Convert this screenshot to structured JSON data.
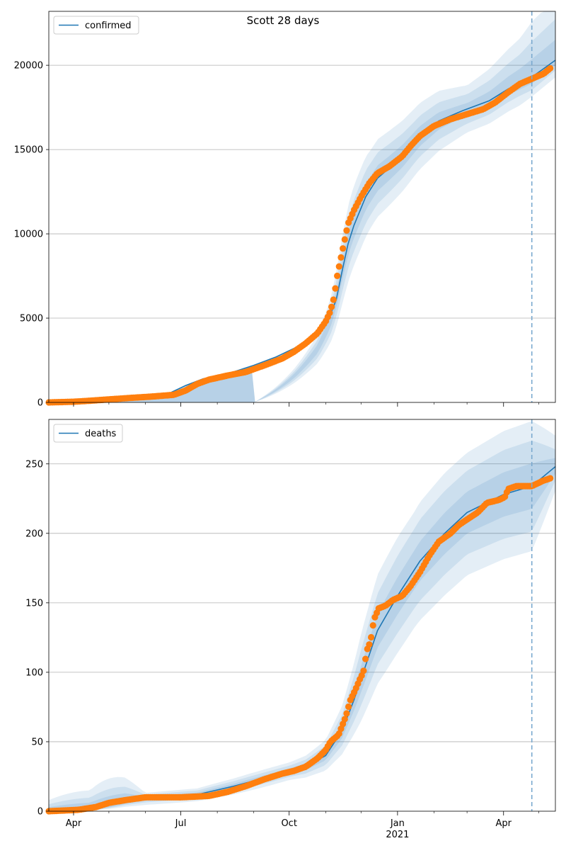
{
  "title": "Scott 28 days",
  "chart_data": [
    {
      "type": "line",
      "legend": "confirmed",
      "legend_position": "top-left",
      "grid": "y",
      "x_start": "2020-03-11",
      "x_end": "2021-05-15",
      "x_tick_labels": [
        "Apr",
        "Jul",
        "Oct",
        "Jan",
        "2021",
        "Apr"
      ],
      "y_ticks": [
        0,
        5000,
        10000,
        15000,
        20000
      ],
      "ylim": [
        0,
        23200
      ],
      "forecast_start": "2021-04-25",
      "model_line": [
        [
          "2020-03-11",
          0
        ],
        [
          "2020-04-01",
          60
        ],
        [
          "2020-05-01",
          200
        ],
        [
          "2020-06-01",
          350
        ],
        [
          "2020-06-20",
          500
        ],
        [
          "2020-07-05",
          1000
        ],
        [
          "2020-07-20",
          1400
        ],
        [
          "2020-08-10",
          1700
        ],
        [
          "2020-09-01",
          2200
        ],
        [
          "2020-09-20",
          2700
        ],
        [
          "2020-10-05",
          3200
        ],
        [
          "2020-10-25",
          4100
        ],
        [
          "2020-11-05",
          5200
        ],
        [
          "2020-11-10",
          6100
        ],
        [
          "2020-11-15",
          7800
        ],
        [
          "2020-11-20",
          9400
        ],
        [
          "2020-11-25",
          10500
        ],
        [
          "2020-12-05",
          12200
        ],
        [
          "2020-12-15",
          13300
        ],
        [
          "2020-12-25",
          13900
        ],
        [
          "2021-01-05",
          14600
        ],
        [
          "2021-01-20",
          15800
        ],
        [
          "2021-02-05",
          16700
        ],
        [
          "2021-02-25",
          17300
        ],
        [
          "2021-03-20",
          17900
        ],
        [
          "2021-04-05",
          18600
        ],
        [
          "2021-04-25",
          19300
        ],
        [
          "2021-05-15",
          20300
        ]
      ],
      "bands": [
        {
          "label": "outer",
          "lower": [
            0,
            0,
            0,
            0.73,
            0.82,
            0.87,
            0.92,
            0.93,
            0.94,
            0.95
          ],
          "upper": [
            0,
            0,
            0,
            1.27,
            1.18,
            1.13,
            1.08,
            1.14,
            1.17,
            1.18
          ]
        },
        {
          "label": "middle",
          "lower": [
            0,
            0,
            0,
            0.83,
            0.88,
            0.92,
            0.95,
            0.96,
            0.96,
            0.97
          ],
          "upper": [
            0,
            0,
            0,
            1.17,
            1.12,
            1.08,
            1.05,
            1.09,
            1.11,
            1.12
          ]
        },
        {
          "label": "inner",
          "lower": [
            0,
            0,
            0,
            0.92,
            0.94,
            0.96,
            0.98,
            0.98,
            0.98,
            0.985
          ],
          "upper": [
            0,
            0,
            0,
            1.08,
            1.06,
            1.04,
            1.02,
            1.045,
            1.055,
            1.06
          ]
        }
      ],
      "band_dates": [
        "2020-03-11",
        "2020-06-01",
        "2020-09-01",
        "2020-11-10",
        "2020-12-10",
        "2021-01-15",
        "2021-03-01",
        "2021-04-15",
        "2021-04-25",
        "2021-05-15"
      ],
      "observed": [
        [
          "2020-03-11",
          0
        ],
        [
          "2020-04-01",
          40
        ],
        [
          "2020-04-15",
          100
        ],
        [
          "2020-05-01",
          180
        ],
        [
          "2020-05-20",
          270
        ],
        [
          "2020-06-05",
          340
        ],
        [
          "2020-06-25",
          450
        ],
        [
          "2020-07-05",
          700
        ],
        [
          "2020-07-15",
          1100
        ],
        [
          "2020-07-25",
          1350
        ],
        [
          "2020-08-10",
          1600
        ],
        [
          "2020-08-25",
          1800
        ],
        [
          "2020-09-10",
          2200
        ],
        [
          "2020-09-25",
          2600
        ],
        [
          "2020-10-05",
          3000
        ],
        [
          "2020-10-15",
          3500
        ],
        [
          "2020-10-25",
          4100
        ],
        [
          "2020-11-01",
          4800
        ],
        [
          "2020-11-05",
          5400
        ],
        [
          "2020-11-08",
          6200
        ],
        [
          "2020-11-11",
          7600
        ],
        [
          "2020-11-14",
          8600
        ],
        [
          "2020-11-17",
          9600
        ],
        [
          "2020-11-20",
          10600
        ],
        [
          "2020-11-25",
          11400
        ],
        [
          "2020-12-01",
          12200
        ],
        [
          "2020-12-08",
          13000
        ],
        [
          "2020-12-15",
          13600
        ],
        [
          "2020-12-25",
          14000
        ],
        [
          "2021-01-05",
          14600
        ],
        [
          "2021-01-12",
          15200
        ],
        [
          "2021-01-20",
          15800
        ],
        [
          "2021-02-01",
          16400
        ],
        [
          "2021-02-15",
          16800
        ],
        [
          "2021-03-01",
          17100
        ],
        [
          "2021-03-15",
          17400
        ],
        [
          "2021-03-25",
          17800
        ],
        [
          "2021-04-05",
          18400
        ],
        [
          "2021-04-15",
          18900
        ],
        [
          "2021-04-25",
          19200
        ],
        [
          "2021-05-05",
          19500
        ],
        [
          "2021-05-12",
          19900
        ]
      ]
    },
    {
      "type": "line",
      "legend": "deaths",
      "legend_position": "top-left",
      "grid": "y",
      "x_start": "2020-03-11",
      "x_end": "2021-05-15",
      "x_tick_labels": [
        "Apr",
        "Jul",
        "Oct",
        "Jan",
        "2021",
        "Apr"
      ],
      "y_ticks": [
        0,
        50,
        100,
        150,
        200,
        250
      ],
      "ylim": [
        0,
        282
      ],
      "forecast_start": "2021-04-25",
      "model_line": [
        [
          "2020-03-11",
          0
        ],
        [
          "2020-04-15",
          2
        ],
        [
          "2020-05-15",
          8
        ],
        [
          "2020-06-15",
          10
        ],
        [
          "2020-07-15",
          12
        ],
        [
          "2020-08-15",
          18
        ],
        [
          "2020-09-15",
          25
        ],
        [
          "2020-10-15",
          32
        ],
        [
          "2020-11-01",
          40
        ],
        [
          "2020-11-15",
          58
        ],
        [
          "2020-11-25",
          80
        ],
        [
          "2020-12-05",
          105
        ],
        [
          "2020-12-15",
          130
        ],
        [
          "2021-01-01",
          155
        ],
        [
          "2021-01-20",
          180
        ],
        [
          "2021-02-10",
          200
        ],
        [
          "2021-03-01",
          215
        ],
        [
          "2021-04-01",
          228
        ],
        [
          "2021-04-25",
          234
        ],
        [
          "2021-05-15",
          248
        ]
      ],
      "bands": [
        {
          "label": "outer",
          "lower": [
            0,
            0.5,
            0.78,
            0.68,
            0.76,
            0.79,
            0.8,
            0.93
          ],
          "upper": [
            8,
            1.45,
            1.22,
            1.34,
            1.24,
            1.2,
            1.2,
            1.09
          ]
        },
        {
          "label": "middle",
          "lower": [
            0,
            0.7,
            0.86,
            0.8,
            0.84,
            0.86,
            0.86,
            0.96
          ],
          "upper": [
            5,
            1.3,
            1.14,
            1.22,
            1.17,
            1.14,
            1.14,
            1.05
          ]
        },
        {
          "label": "inner",
          "lower": [
            0,
            0.85,
            0.93,
            0.9,
            0.92,
            0.93,
            0.93,
            0.98
          ],
          "upper": [
            3,
            1.15,
            1.07,
            1.1,
            1.08,
            1.07,
            1.07,
            1.025
          ]
        }
      ],
      "band_dates": [
        "2020-03-11",
        "2020-06-01",
        "2020-10-01",
        "2020-12-01",
        "2021-01-15",
        "2021-03-01",
        "2021-04-25",
        "2021-05-15"
      ],
      "observed": [
        [
          "2020-03-11",
          0
        ],
        [
          "2020-04-05",
          1
        ],
        [
          "2020-04-20",
          3
        ],
        [
          "2020-05-01",
          6
        ],
        [
          "2020-05-15",
          8
        ],
        [
          "2020-06-01",
          10
        ],
        [
          "2020-07-01",
          10
        ],
        [
          "2020-07-25",
          11
        ],
        [
          "2020-08-10",
          14
        ],
        [
          "2020-08-25",
          18
        ],
        [
          "2020-09-10",
          23
        ],
        [
          "2020-09-25",
          27
        ],
        [
          "2020-10-05",
          29
        ],
        [
          "2020-10-15",
          32
        ],
        [
          "2020-10-25",
          38
        ],
        [
          "2020-11-01",
          44
        ],
        [
          "2020-11-05",
          50
        ],
        [
          "2020-11-12",
          55
        ],
        [
          "2020-11-18",
          68
        ],
        [
          "2020-11-22",
          80
        ],
        [
          "2020-11-26",
          87
        ],
        [
          "2020-11-30",
          95
        ],
        [
          "2020-12-03",
          100
        ],
        [
          "2020-12-06",
          116
        ],
        [
          "2020-12-09",
          122
        ],
        [
          "2020-12-12",
          138
        ],
        [
          "2020-12-16",
          146
        ],
        [
          "2020-12-22",
          148
        ],
        [
          "2020-12-28",
          152
        ],
        [
          "2021-01-05",
          155
        ],
        [
          "2021-01-12",
          162
        ],
        [
          "2021-01-20",
          172
        ],
        [
          "2021-01-28",
          184
        ],
        [
          "2021-02-05",
          194
        ],
        [
          "2021-02-15",
          200
        ],
        [
          "2021-02-22",
          206
        ],
        [
          "2021-03-01",
          210
        ],
        [
          "2021-03-10",
          215
        ],
        [
          "2021-03-18",
          222
        ],
        [
          "2021-03-28",
          224
        ],
        [
          "2021-04-02",
          226
        ],
        [
          "2021-04-05",
          232
        ],
        [
          "2021-04-12",
          234
        ],
        [
          "2021-04-25",
          234
        ],
        [
          "2021-05-05",
          238
        ],
        [
          "2021-05-12",
          240
        ]
      ]
    }
  ]
}
